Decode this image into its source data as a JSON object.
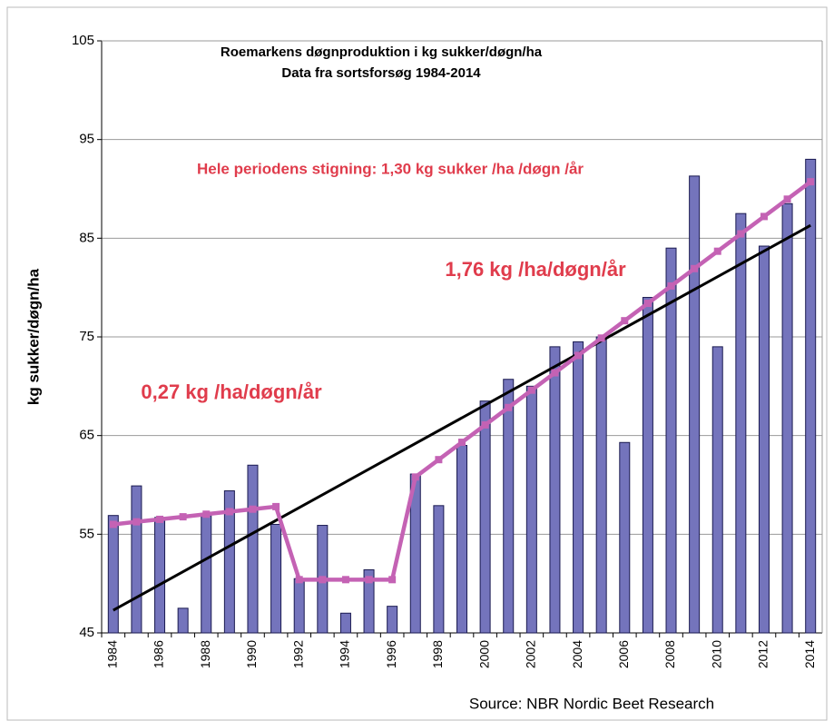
{
  "chart_data": {
    "type": "bar",
    "title": [
      "Roemarkens døgnproduktion i kg sukker/døgn/ha",
      "Data fra sortsforsøg 1984-2014"
    ],
    "y_label": "kg sukker/døgn/ha",
    "source": "Source: NBR Nordic Beet Research",
    "annotations": [
      {
        "text": "Hele periodens stigning: 1,30 kg sukker /ha /døgn /år",
        "color": "#e03c4c"
      },
      {
        "text": "1,76 kg /ha/døgn/år",
        "color": "#e03c4c"
      },
      {
        "text": "0,27 kg /ha/døgn/år",
        "color": "#e03c4c"
      }
    ],
    "categories": [
      "1984",
      null,
      "1986",
      null,
      "1988",
      null,
      "1990",
      null,
      "1992",
      null,
      "1994",
      null,
      "1996",
      null,
      "1998",
      null,
      "2000",
      null,
      "2002",
      null,
      "2004",
      null,
      "2006",
      null,
      "2008",
      null,
      "2010",
      null,
      "2012",
      null,
      "2014"
    ],
    "series": [
      {
        "type": "bar",
        "color": "#7474bc",
        "values": [
          56.9,
          59.9,
          56.7,
          47.5,
          56.9,
          59.4,
          62.0,
          56.0,
          50.5,
          55.9,
          47.0,
          51.4,
          47.7,
          61.1,
          57.9,
          64.0,
          68.5,
          70.7,
          70.0,
          74.0,
          74.5,
          75.0,
          64.3,
          79.0,
          84.0,
          91.3,
          74.0,
          87.5,
          84.2,
          88.5,
          93.0
        ]
      },
      {
        "type": "line",
        "color": "#c462b4",
        "values": [
          56.0,
          56.26,
          56.51,
          56.77,
          57.03,
          57.29,
          57.54,
          57.8,
          50.4,
          50.4,
          50.4,
          50.4,
          50.4,
          60.8,
          62.56,
          64.32,
          66.08,
          67.84,
          69.6,
          71.36,
          73.12,
          74.88,
          76.64,
          78.4,
          80.16,
          81.92,
          83.68,
          85.44,
          87.2,
          88.96,
          90.72
        ]
      }
    ],
    "trendline": {
      "start": 47.3,
      "end": 86.3,
      "color": "#000000"
    },
    "ylim": [
      45,
      105
    ],
    "yticks": [
      45,
      55,
      65,
      75,
      85,
      95,
      105
    ],
    "grid": true
  }
}
